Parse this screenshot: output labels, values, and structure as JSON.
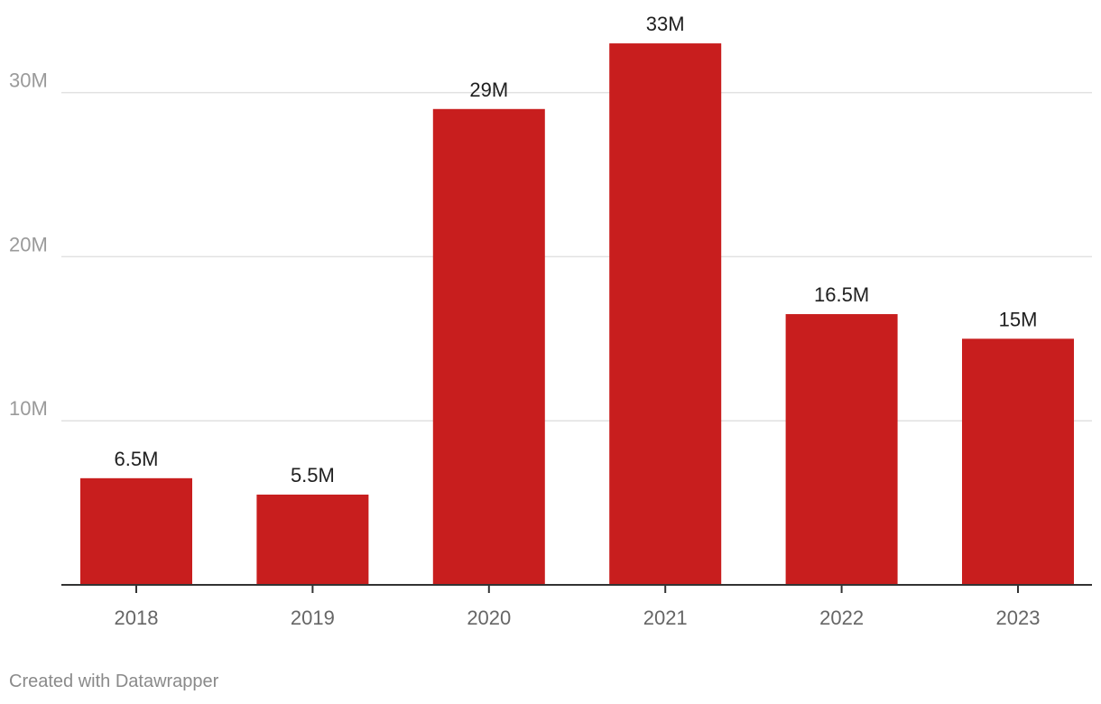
{
  "chart_data": {
    "type": "bar",
    "categories": [
      "2018",
      "2019",
      "2020",
      "2021",
      "2022",
      "2023"
    ],
    "values": [
      6.5,
      5.5,
      29,
      33,
      16.5,
      15
    ],
    "data_labels": [
      "6.5M",
      "5.5M",
      "29M",
      "33M",
      "16.5M",
      "15M"
    ],
    "title": "",
    "xlabel": "",
    "ylabel": "",
    "ylim": [
      0,
      33
    ],
    "yticks": [
      10,
      20,
      30
    ],
    "ytick_labels": [
      "10M",
      "20M",
      "30M"
    ],
    "grid": true,
    "bar_color": "#c81e1e"
  },
  "footer": {
    "credit": "Created with Datawrapper"
  }
}
